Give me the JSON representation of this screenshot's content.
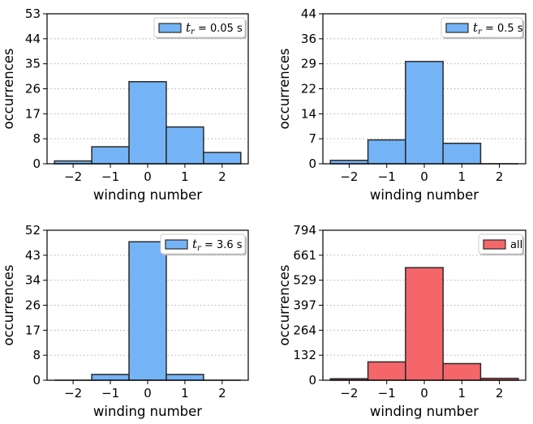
{
  "chart_data": [
    {
      "type": "bar",
      "categories": [
        "-2",
        "-1",
        "0",
        "1",
        "2"
      ],
      "values": [
        1,
        6,
        29,
        13,
        4
      ],
      "ylim": [
        0,
        53
      ],
      "yticks": [
        "0",
        "8",
        "17",
        "26",
        "35",
        "44",
        "53"
      ],
      "xticks": [
        "−2",
        "−1",
        "0",
        "1",
        "2"
      ],
      "xlabel": "winding number",
      "ylabel": "occurrences",
      "legend": {
        "var": "t",
        "sub": "r",
        "text": " = 0.05 s",
        "color": "#74b4f6",
        "edge": "#2a2a2a"
      },
      "grid": "horizontal dotted",
      "legend_placement": "top-right"
    },
    {
      "type": "bar",
      "categories": [
        "-2",
        "-1",
        "0",
        "1",
        "2"
      ],
      "values": [
        1,
        7,
        30,
        6,
        0
      ],
      "ylim": [
        0,
        44
      ],
      "yticks": [
        "0",
        "7",
        "14",
        "22",
        "29",
        "36",
        "44"
      ],
      "xticks": [
        "−2",
        "−1",
        "0",
        "1",
        "2"
      ],
      "xlabel": "winding number",
      "ylabel": "occurrences",
      "legend": {
        "var": "t",
        "sub": "r",
        "text": " = 0.5 s",
        "color": "#74b4f6",
        "edge": "#2a2a2a"
      },
      "grid": "horizontal dotted",
      "legend_placement": "top-right"
    },
    {
      "type": "bar",
      "categories": [
        "-2",
        "-1",
        "0",
        "1",
        "2"
      ],
      "values": [
        0,
        2,
        48,
        2,
        0
      ],
      "ylim": [
        0,
        52
      ],
      "yticks": [
        "0",
        "8",
        "17",
        "26",
        "34",
        "43",
        "52"
      ],
      "xticks": [
        "−2",
        "−1",
        "0",
        "1",
        "2"
      ],
      "xlabel": "winding number",
      "ylabel": "occurrences",
      "legend": {
        "var": "t",
        "sub": "r",
        "text": " = 3.6 s",
        "color": "#74b4f6",
        "edge": "#2a2a2a"
      },
      "grid": "horizontal dotted",
      "legend_placement": "top-right"
    },
    {
      "type": "bar",
      "categories": [
        "-2",
        "-1",
        "0",
        "1",
        "2"
      ],
      "values": [
        8,
        97,
        596,
        88,
        10
      ],
      "ylim": [
        0,
        794
      ],
      "yticks": [
        "0",
        "132",
        "264",
        "397",
        "529",
        "661",
        "794"
      ],
      "xticks": [
        "−2",
        "−1",
        "0",
        "1",
        "2"
      ],
      "xlabel": "winding number",
      "ylabel": "occurrences",
      "legend": {
        "var": "",
        "sub": "",
        "text": "all",
        "color": "#f4666a",
        "edge": "#2a2a2a"
      },
      "grid": "horizontal dotted",
      "legend_placement": "top-right"
    }
  ]
}
